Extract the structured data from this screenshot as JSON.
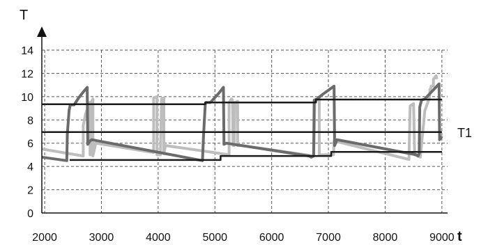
{
  "chart_data": {
    "type": "line",
    "xlabel": "t",
    "ylabel": "T",
    "xlim": [
      1950,
      9100
    ],
    "ylim": [
      0,
      14
    ],
    "x_ticks": [
      2000,
      3000,
      4000,
      5000,
      6000,
      7000,
      8000,
      9000
    ],
    "y_ticks": [
      0,
      2,
      4,
      6,
      8,
      10,
      12,
      14
    ],
    "grid": true,
    "annotations": [
      {
        "text": "T1",
        "x": 9100,
        "y": 6.95
      }
    ],
    "series": [
      {
        "color": "#bdbdbd",
        "width": 4,
        "points": [
          [
            1950,
            5.5
          ],
          [
            2680,
            4.9
          ],
          [
            2680,
            7.5
          ],
          [
            2720,
            8.5
          ],
          [
            2780,
            9.3
          ],
          [
            2800,
            9.5
          ],
          [
            2800,
            5.0
          ],
          [
            2830,
            5.0
          ],
          [
            2830,
            9.6
          ],
          [
            2850,
            9.8
          ],
          [
            2850,
            4.9
          ],
          [
            2900,
            6.0
          ],
          [
            3920,
            5.2
          ],
          [
            3920,
            9.9
          ],
          [
            3980,
            10.0
          ],
          [
            3980,
            5.0
          ],
          [
            4040,
            5.0
          ],
          [
            4060,
            9.8
          ],
          [
            4100,
            9.9
          ],
          [
            4100,
            5.1
          ],
          [
            4130,
            5.8
          ],
          [
            5250,
            5.0
          ],
          [
            5250,
            9.5
          ],
          [
            5290,
            9.8
          ],
          [
            5310,
            9.7
          ],
          [
            5320,
            5.8
          ],
          [
            5340,
            5.8
          ],
          [
            5350,
            9.5
          ],
          [
            5400,
            9.6
          ],
          [
            5400,
            5.8
          ],
          [
            5480,
            5.8
          ],
          [
            6740,
            4.9
          ],
          [
            6760,
            9.5
          ],
          [
            6810,
            9.8
          ],
          [
            6840,
            10.0
          ],
          [
            6840,
            5.0
          ],
          [
            7090,
            5.0
          ],
          [
            7100,
            6.2
          ],
          [
            8420,
            4.6
          ],
          [
            8430,
            7.0
          ],
          [
            8440,
            9.2
          ],
          [
            8500,
            9.4
          ],
          [
            8520,
            5.0
          ],
          [
            8620,
            4.8
          ],
          [
            8700,
            8.8
          ],
          [
            8780,
            9.9
          ],
          [
            8790,
            10.6
          ],
          [
            8800,
            10.5
          ],
          [
            8810,
            10.9
          ],
          [
            8850,
            10.9
          ],
          [
            8850,
            11.5
          ],
          [
            8900,
            11.8
          ],
          [
            8910,
            11.5
          ]
        ]
      },
      {
        "color": "#6b6b6b",
        "width": 4,
        "points": [
          [
            1950,
            4.8
          ],
          [
            2390,
            4.5
          ],
          [
            2400,
            6.8
          ],
          [
            2430,
            8.8
          ],
          [
            2450,
            9.3
          ],
          [
            2520,
            9.3
          ],
          [
            2600,
            9.9
          ],
          [
            2680,
            10.4
          ],
          [
            2750,
            10.8
          ],
          [
            2760,
            5.9
          ],
          [
            2800,
            6.2
          ],
          [
            2830,
            6.3
          ],
          [
            4780,
            4.5
          ],
          [
            4800,
            6.7
          ],
          [
            4830,
            9.3
          ],
          [
            4840,
            9.5
          ],
          [
            4920,
            9.5
          ],
          [
            5070,
            10.3
          ],
          [
            5150,
            10.8
          ],
          [
            5160,
            5.9
          ],
          [
            5200,
            6.0
          ],
          [
            6660,
            4.9
          ],
          [
            6700,
            4.8
          ],
          [
            6740,
            4.9
          ],
          [
            6750,
            9.7
          ],
          [
            6800,
            9.8
          ],
          [
            6900,
            10.2
          ],
          [
            7100,
            10.9
          ],
          [
            7110,
            5.8
          ],
          [
            7150,
            6.3
          ],
          [
            8550,
            5.0
          ],
          [
            8580,
            4.9
          ],
          [
            8600,
            5.1
          ],
          [
            8610,
            9.1
          ],
          [
            8640,
            9.7
          ],
          [
            8700,
            9.8
          ],
          [
            8950,
            11.1
          ],
          [
            8960,
            6.3
          ],
          [
            9000,
            6.6
          ]
        ]
      },
      {
        "color": "#1a1a1a",
        "width": 2.5,
        "points": [
          [
            1950,
            9.35
          ],
          [
            4830,
            9.35
          ],
          [
            4830,
            9.5
          ],
          [
            6780,
            9.5
          ],
          [
            6780,
            9.75
          ],
          [
            9000,
            9.75
          ]
        ]
      },
      {
        "color": "#1a1a1a",
        "width": 2.5,
        "points": [
          [
            1950,
            6.95
          ],
          [
            9000,
            6.95
          ]
        ]
      },
      {
        "color": "#1a1a1a",
        "width": 2.5,
        "points": [
          [
            2440,
            4.55
          ],
          [
            5100,
            4.55
          ],
          [
            5100,
            4.9
          ],
          [
            7050,
            4.9
          ],
          [
            7050,
            5.25
          ],
          [
            9000,
            5.25
          ]
        ]
      }
    ]
  }
}
